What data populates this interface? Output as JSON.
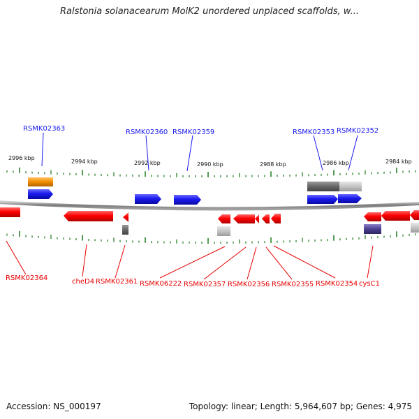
{
  "title": "Ralstonia solanacearum MolK2 unordered unplaced scaffolds, w...",
  "footer": {
    "accession": "Accession: NS_000197",
    "summary": "Topology: linear; Length: 5,964,607 bp; Genes: 4,975"
  },
  "scale_labels": [
    "2996 kbp",
    "2994 kbp",
    "2992 kbp",
    "2990 kbp",
    "2988 kbp",
    "2986 kbp",
    "2984 kbp"
  ],
  "top_genes": [
    "RSMK02363",
    "RSMK02360",
    "RSMK02359",
    "RSMK02353",
    "RSMK02352"
  ],
  "bottom_genes": [
    "RSMK02364",
    "cheD4",
    "RSMK02361",
    "RSMK06222",
    "RSMK02357",
    "RSMK02356",
    "RSMK02355",
    "RSMK02354",
    "cysC1"
  ],
  "colors": {
    "forward": "#1a1aee",
    "reverse": "#e80000",
    "orange": "#f08c00",
    "gray": "#666666",
    "lightgray": "#bdbdbd",
    "purple": "#4a3f8f",
    "tick": "#1a7a1a",
    "backbone": "#8a8a8a"
  }
}
